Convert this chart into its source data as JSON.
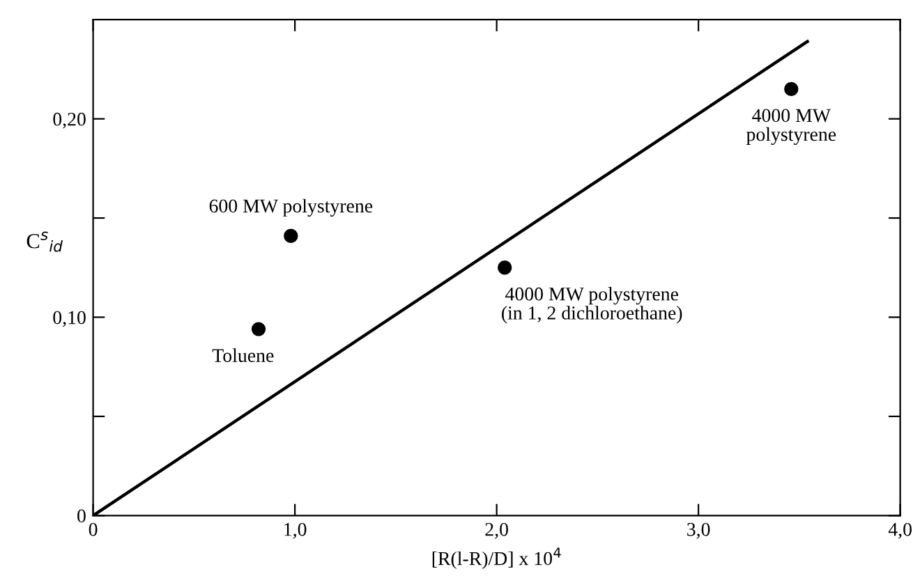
{
  "chart_data": {
    "type": "scatter",
    "xlabel": "[R(l-R)/D] x 10$^{4}$",
    "ylabel": "C$^{s}$$_{id}$",
    "series": [
      {
        "color": "#000000",
        "marker": "circle",
        "x": [
          0.82,
          0.98,
          2.04,
          3.46
        ],
        "values": [
          0.094,
          0.141,
          0.125,
          0.215
        ]
      },
      {
        "type": "line",
        "color": "#000000",
        "marker": "none",
        "line_style": "solid",
        "x": [
          0,
          3.54
        ],
        "values": [
          0,
          0.239
        ]
      }
    ],
    "annotations": [
      {
        "text": "Toluene",
        "x": 0.82,
        "y": 0.094
      },
      {
        "text": "600 MW polystyrene",
        "x": 0.98,
        "y": 0.141
      },
      {
        "text": "4000 MW polystyrene\n(in 1, 2 dichloroethane)",
        "x": 2.04,
        "y": 0.125
      },
      {
        "text": "4000 MW\npolystyrene",
        "x": 3.46,
        "y": 0.215
      }
    ],
    "xlim": [
      0,
      4.0
    ],
    "ylim": [
      0,
      0.25
    ],
    "xticks": [
      0,
      {
        "value": 1.0,
        "label": "1,0"
      },
      {
        "value": 2.0,
        "label": "2,0"
      },
      {
        "value": 3.0,
        "label": "3,0"
      },
      {
        "value": 4.0,
        "label": "4,0"
      }
    ],
    "yticks": [
      0,
      {
        "value": 0.05,
        "label": null
      },
      {
        "value": 0.1,
        "label": "0,10"
      },
      {
        "value": 0.15,
        "label": null
      },
      {
        "value": 0.2,
        "label": "0,20"
      }
    ],
    "grid": false,
    "legend": false
  }
}
